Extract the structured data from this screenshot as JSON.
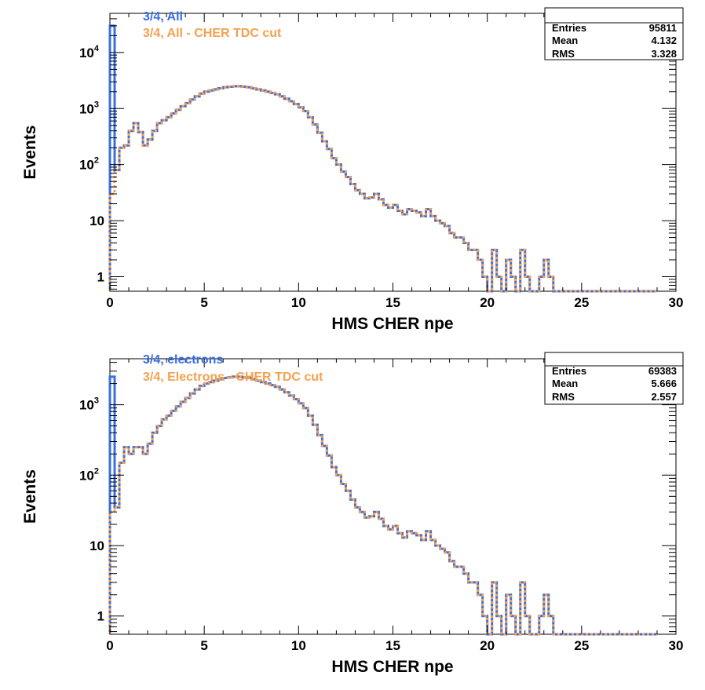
{
  "colors": {
    "series1": "#3B6FE0",
    "series2": "#F6A04D",
    "axis": "#000000",
    "background": "#ffffff"
  },
  "chart_data": [
    {
      "type": "histogram",
      "xlabel": "HMS CHER npe",
      "ylabel": "Events",
      "xlim": [
        0,
        30
      ],
      "ylim": [
        0.55,
        50000
      ],
      "yscale": "log",
      "grid": false,
      "x_tick_labels": [
        "0",
        "5",
        "10",
        "15",
        "20",
        "25",
        "30"
      ],
      "y_tick_labels": [
        "1",
        "10",
        "10²",
        "10³",
        "10⁴"
      ],
      "legend_placement": "top-left",
      "stats_box": {
        "placement": "top-right",
        "rows": [
          {
            "label": "Entries",
            "value": "95811"
          },
          {
            "label": "Mean",
            "value": "4.132"
          },
          {
            "label": "RMS",
            "value": "3.328"
          }
        ]
      },
      "bin_width": 0.25,
      "x_start": 0,
      "series": [
        {
          "name": "3/4, All",
          "color": "#3B6FE0",
          "values": [
            30000,
            80,
            200,
            220,
            400,
            550,
            380,
            220,
            280,
            400,
            550,
            620,
            700,
            820,
            950,
            1100,
            1250,
            1450,
            1650,
            1850,
            2000,
            2100,
            2200,
            2300,
            2400,
            2450,
            2500,
            2500,
            2450,
            2400,
            2300,
            2200,
            2100,
            2000,
            1900,
            1800,
            1650,
            1500,
            1350,
            1200,
            1050,
            900,
            700,
            520,
            370,
            260,
            190,
            130,
            100,
            75,
            60,
            45,
            35,
            30,
            25,
            26,
            30,
            24,
            19,
            17,
            19,
            15,
            13,
            16,
            15,
            14,
            12,
            16,
            12,
            10,
            9,
            8,
            6,
            5,
            5,
            4,
            3,
            3,
            2,
            1,
            0,
            3,
            1,
            0,
            2,
            1,
            0,
            3,
            1,
            0,
            0,
            1,
            2,
            1,
            0,
            0,
            0,
            0,
            0,
            0,
            0,
            0,
            0,
            0,
            0,
            0,
            0,
            0,
            0,
            0,
            0,
            0,
            0,
            0,
            0,
            0
          ]
        },
        {
          "name": "3/4, All - CHER TDC cut",
          "color": "#F6A04D",
          "values": [
            30,
            80,
            200,
            220,
            400,
            550,
            380,
            220,
            280,
            400,
            550,
            620,
            700,
            820,
            950,
            1100,
            1250,
            1450,
            1650,
            1850,
            2000,
            2100,
            2200,
            2300,
            2400,
            2450,
            2500,
            2500,
            2450,
            2400,
            2300,
            2200,
            2100,
            2000,
            1900,
            1800,
            1650,
            1500,
            1350,
            1200,
            1050,
            900,
            700,
            520,
            370,
            260,
            190,
            130,
            100,
            75,
            60,
            45,
            35,
            30,
            25,
            26,
            30,
            24,
            19,
            17,
            19,
            15,
            13,
            16,
            15,
            14,
            12,
            16,
            12,
            10,
            9,
            8,
            6,
            5,
            5,
            4,
            3,
            3,
            2,
            1,
            0,
            3,
            1,
            0,
            2,
            1,
            0,
            3,
            1,
            0,
            0,
            1,
            2,
            1,
            0,
            0,
            0,
            0,
            0,
            0,
            0,
            0,
            0,
            0,
            0,
            0,
            0,
            0,
            0,
            0,
            0,
            0,
            0,
            0,
            0,
            0
          ]
        }
      ]
    },
    {
      "type": "histogram",
      "xlabel": "HMS CHER npe",
      "ylabel": "Events",
      "xlim": [
        0,
        30
      ],
      "ylim": [
        0.55,
        4500
      ],
      "yscale": "log",
      "grid": false,
      "x_tick_labels": [
        "0",
        "5",
        "10",
        "15",
        "20",
        "25",
        "30"
      ],
      "y_tick_labels": [
        "1",
        "10",
        "10²",
        "10³"
      ],
      "legend_placement": "top-left",
      "stats_box": {
        "placement": "top-right",
        "rows": [
          {
            "label": "Entries",
            "value": "69383"
          },
          {
            "label": "Mean",
            "value": "5.666"
          },
          {
            "label": "RMS",
            "value": "2.557"
          }
        ]
      },
      "bin_width": 0.25,
      "x_start": 0,
      "series": [
        {
          "name": "3/4, electrons",
          "color": "#3B6FE0",
          "values": [
            2500,
            35,
            150,
            250,
            200,
            250,
            250,
            200,
            280,
            400,
            500,
            620,
            700,
            820,
            950,
            1100,
            1250,
            1450,
            1650,
            1850,
            2000,
            2100,
            2200,
            2300,
            2400,
            2450,
            2500,
            2500,
            2450,
            2400,
            2300,
            2200,
            2100,
            2000,
            1900,
            1800,
            1650,
            1500,
            1350,
            1200,
            1050,
            900,
            700,
            520,
            370,
            260,
            190,
            130,
            100,
            75,
            60,
            45,
            35,
            30,
            25,
            26,
            30,
            24,
            19,
            17,
            19,
            15,
            13,
            16,
            15,
            14,
            12,
            16,
            12,
            10,
            9,
            8,
            6,
            5,
            5,
            4,
            3,
            3,
            2,
            1,
            0,
            3,
            1,
            0,
            2,
            1,
            0,
            3,
            1,
            0,
            0,
            1,
            2,
            1,
            0,
            0,
            0,
            0,
            0,
            0,
            0,
            0,
            0,
            0,
            0,
            0,
            0,
            0,
            0,
            0,
            0,
            0,
            0,
            0,
            0,
            0
          ]
        },
        {
          "name": "3/4, Electrons - CHER TDC cut",
          "color": "#F6A04D",
          "values": [
            30,
            35,
            150,
            250,
            200,
            250,
            250,
            200,
            280,
            400,
            500,
            620,
            700,
            820,
            950,
            1100,
            1250,
            1450,
            1650,
            1850,
            2000,
            2100,
            2200,
            2300,
            2400,
            2450,
            2500,
            2500,
            2450,
            2400,
            2300,
            2200,
            2100,
            2000,
            1900,
            1800,
            1650,
            1500,
            1350,
            1200,
            1050,
            900,
            700,
            520,
            370,
            260,
            190,
            130,
            100,
            75,
            60,
            45,
            35,
            30,
            25,
            26,
            30,
            24,
            19,
            17,
            19,
            15,
            13,
            16,
            15,
            14,
            12,
            16,
            12,
            10,
            9,
            8,
            6,
            5,
            5,
            4,
            3,
            3,
            2,
            1,
            0,
            3,
            1,
            0,
            2,
            1,
            0,
            3,
            1,
            0,
            0,
            1,
            2,
            1,
            0,
            0,
            0,
            0,
            0,
            0,
            0,
            0,
            0,
            0,
            0,
            0,
            0,
            0,
            0,
            0,
            0,
            0,
            0,
            0,
            0,
            0
          ]
        }
      ]
    }
  ]
}
